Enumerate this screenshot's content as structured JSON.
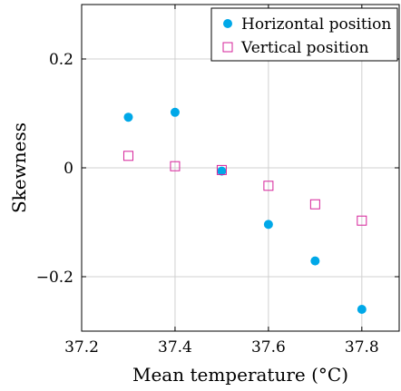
{
  "chart_data": {
    "type": "scatter",
    "title": "",
    "xlabel": "Mean temperature (°C)",
    "ylabel": "Skewness",
    "xlim": [
      37.2,
      37.88
    ],
    "ylim": [
      -0.3,
      0.3
    ],
    "xticks": [
      37.2,
      37.4,
      37.6,
      37.8
    ],
    "xtick_labels": [
      "37.2",
      "37.4",
      "37.6",
      "37.8"
    ],
    "yticks": [
      -0.2,
      0,
      0.2
    ],
    "ytick_labels": [
      "−0.2",
      "0",
      "0.2"
    ],
    "grid": true,
    "legend_position": "top-right",
    "series": [
      {
        "name": "Horizontal position",
        "marker": "filled-circle",
        "color": "#00a8e8",
        "x": [
          37.3,
          37.4,
          37.5,
          37.6,
          37.7,
          37.8
        ],
        "y": [
          0.093,
          0.102,
          -0.006,
          -0.104,
          -0.171,
          -0.26
        ]
      },
      {
        "name": "Vertical position",
        "marker": "open-square",
        "color": "#d6219a",
        "x": [
          37.3,
          37.4,
          37.5,
          37.6,
          37.7,
          37.8
        ],
        "y": [
          0.022,
          0.003,
          -0.004,
          -0.033,
          -0.067,
          -0.097
        ]
      }
    ]
  }
}
